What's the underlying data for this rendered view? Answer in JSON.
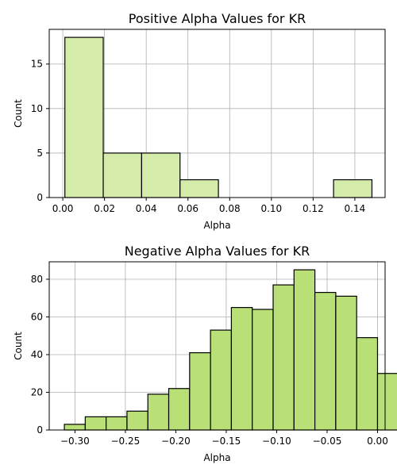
{
  "chart_data": [
    {
      "type": "bar",
      "title": "Positive Alpha Values for KR",
      "xlabel": "Alpha",
      "ylabel": "Count",
      "xlim": [
        -0.0065,
        0.1545
      ],
      "ylim": [
        0,
        18.9
      ],
      "xticks": [
        0.0,
        0.02,
        0.04,
        0.06,
        0.08,
        0.1,
        0.12,
        0.14
      ],
      "xtick_labels": [
        "0.00",
        "0.02",
        "0.04",
        "0.06",
        "0.08",
        "0.10",
        "0.12",
        "0.14"
      ],
      "yticks": [
        0,
        5,
        10,
        15
      ],
      "ytick_labels": [
        "0",
        "5",
        "10",
        "15"
      ],
      "grid": true,
      "bar_color": "#d4ebaa",
      "bins": [
        {
          "x0": 0.001,
          "x1": 0.0194,
          "count": 18
        },
        {
          "x0": 0.0194,
          "x1": 0.0378,
          "count": 5
        },
        {
          "x0": 0.0378,
          "x1": 0.0562,
          "count": 5
        },
        {
          "x0": 0.0562,
          "x1": 0.0746,
          "count": 2
        },
        {
          "x0": 0.1298,
          "x1": 0.1482,
          "count": 2
        }
      ]
    },
    {
      "type": "bar",
      "title": "Negative Alpha Values for KR",
      "xlabel": "Alpha",
      "ylabel": "Count",
      "xlim": [
        -0.3255,
        0.0075
      ],
      "ylim": [
        0,
        89.25
      ],
      "xticks": [
        -0.3,
        -0.25,
        -0.2,
        -0.15,
        -0.1,
        -0.05,
        0.0
      ],
      "xtick_labels": [
        "−0.30",
        "−0.25",
        "−0.20",
        "−0.15",
        "−0.10",
        "−0.05",
        "0.00"
      ],
      "yticks": [
        0,
        20,
        40,
        60,
        80
      ],
      "ytick_labels": [
        "0",
        "20",
        "40",
        "60",
        "80"
      ],
      "grid": true,
      "bar_color": "#b9e077",
      "bins": [
        {
          "x0": -0.3105,
          "x1": -0.2898,
          "count": 3
        },
        {
          "x0": -0.2898,
          "x1": -0.2691,
          "count": 7
        },
        {
          "x0": -0.2691,
          "x1": -0.2484,
          "count": 7
        },
        {
          "x0": -0.2484,
          "x1": -0.2277,
          "count": 10
        },
        {
          "x0": -0.2277,
          "x1": -0.207,
          "count": 19
        },
        {
          "x0": -0.207,
          "x1": -0.1863,
          "count": 22
        },
        {
          "x0": -0.1863,
          "x1": -0.1656,
          "count": 41
        },
        {
          "x0": -0.1656,
          "x1": -0.1449,
          "count": 53
        },
        {
          "x0": -0.1449,
          "x1": -0.1242,
          "count": 65
        },
        {
          "x0": -0.1242,
          "x1": -0.1035,
          "count": 64
        },
        {
          "x0": -0.1035,
          "x1": -0.0828,
          "count": 77
        },
        {
          "x0": -0.0828,
          "x1": -0.0621,
          "count": 85
        },
        {
          "x0": -0.0621,
          "x1": -0.0414,
          "count": 73
        },
        {
          "x0": -0.0414,
          "x1": -0.0207,
          "count": 71
        },
        {
          "x0": -0.0207,
          "x1": 0.0,
          "count": 49
        },
        {
          "x0": 0.0,
          "x1": 0.0207,
          "count": 30
        }
      ]
    }
  ]
}
